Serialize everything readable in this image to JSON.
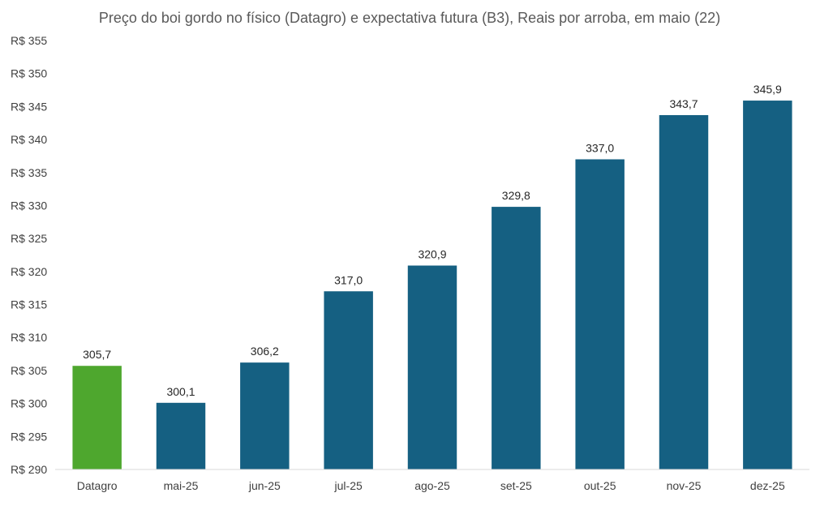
{
  "chart_data": {
    "type": "bar",
    "title": "Preço do boi gordo no físico (Datagro)  e expectativa futura (B3), Reais por arroba, em maio (22)",
    "xlabel": "",
    "ylabel": "",
    "ylim": [
      290,
      355
    ],
    "y_ticks": [
      290,
      295,
      300,
      305,
      310,
      315,
      320,
      325,
      330,
      335,
      340,
      345,
      350,
      355
    ],
    "y_tick_labels": [
      "R$ 290",
      "R$ 295",
      "R$ 300",
      "R$ 305",
      "R$ 310",
      "R$ 315",
      "R$ 320",
      "R$ 325",
      "R$ 330",
      "R$ 335",
      "R$ 340",
      "R$ 345",
      "R$ 350",
      "R$ 355"
    ],
    "categories": [
      "Datagro",
      "mai-25",
      "jun-25",
      "jul-25",
      "ago-25",
      "set-25",
      "out-25",
      "nov-25",
      "dez-25"
    ],
    "values": [
      305.7,
      300.1,
      306.2,
      317.0,
      320.9,
      329.8,
      337.0,
      343.7,
      345.9
    ],
    "data_labels": [
      "305,7",
      "300,1",
      "306,2",
      "317,0",
      "320,9",
      "329,8",
      "337,0",
      "343,7",
      "345,9"
    ],
    "bar_colors": [
      "#4ea72e",
      "#156082",
      "#156082",
      "#156082",
      "#156082",
      "#156082",
      "#156082",
      "#156082",
      "#156082"
    ],
    "grid": false,
    "legend": "none"
  }
}
